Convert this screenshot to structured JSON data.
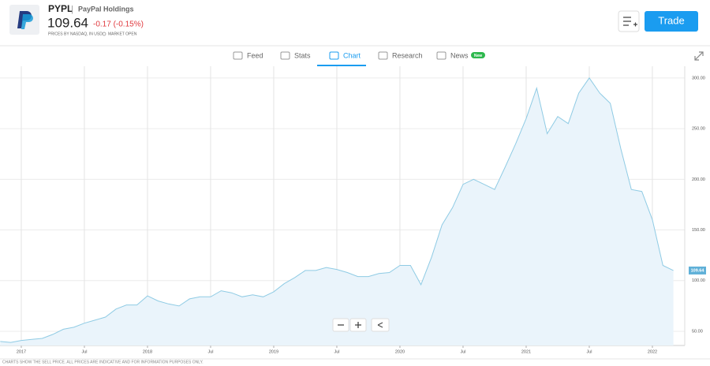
{
  "header": {
    "symbol": "PYPL",
    "separator": "|",
    "name": "PayPal Holdings",
    "price": "109.64",
    "change": "-0.17 (-0.15%)",
    "source": "PRICES BY NASDAQ, IN USD",
    "status": "MARKET OPEN",
    "trade_button": "Trade"
  },
  "tabs": [
    "Feed",
    "Stats",
    "Chart",
    "Research",
    "News"
  ],
  "news_badge": "New",
  "footer": "CHARTS SHOW THE SELL PRICE. ALL PRICES ARE INDICATIVE AND FOR INFORMATION PURPOSES ONLY.",
  "chart_data": {
    "type": "area",
    "color": "#8fcbe4",
    "price_tag": "109.64",
    "x": [
      "2016-11",
      "2016-12",
      "2017-01",
      "2017-02",
      "2017-03",
      "2017-04",
      "2017-05",
      "2017-06",
      "2017-07",
      "2017-08",
      "2017-09",
      "2017-10",
      "2017-11",
      "2017-12",
      "2018-01",
      "2018-02",
      "2018-03",
      "2018-04",
      "2018-05",
      "2018-06",
      "2018-07",
      "2018-08",
      "2018-09",
      "2018-10",
      "2018-11",
      "2018-12",
      "2019-01",
      "2019-02",
      "2019-03",
      "2019-04",
      "2019-05",
      "2019-06",
      "2019-07",
      "2019-08",
      "2019-09",
      "2019-10",
      "2019-11",
      "2019-12",
      "2020-01",
      "2020-02",
      "2020-03",
      "2020-04",
      "2020-05",
      "2020-06",
      "2020-07",
      "2020-08",
      "2020-09",
      "2020-10",
      "2020-11",
      "2020-12",
      "2021-01",
      "2021-02",
      "2021-03",
      "2021-04",
      "2021-05",
      "2021-06",
      "2021-07",
      "2021-08",
      "2021-09",
      "2021-10",
      "2021-11",
      "2021-12",
      "2022-01",
      "2022-02",
      "2022-03"
    ],
    "values": [
      40,
      39,
      41,
      42,
      43,
      47,
      52,
      54,
      58,
      61,
      64,
      72,
      76,
      76,
      85,
      80,
      77,
      75,
      82,
      84,
      84,
      90,
      88,
      84,
      86,
      84,
      89,
      97,
      103,
      110,
      110,
      113,
      111,
      108,
      104,
      104,
      107,
      108,
      115,
      115,
      96,
      123,
      155,
      172,
      195,
      200,
      195,
      190,
      212,
      235,
      260,
      290,
      245,
      262,
      255,
      285,
      300,
      285,
      275,
      230,
      190,
      188,
      160,
      115,
      110
    ],
    "xticks": [
      {
        "value": "2017-01",
        "label": "2017"
      },
      {
        "value": "2017-07",
        "label": "Jul"
      },
      {
        "value": "2018-01",
        "label": "2018"
      },
      {
        "value": "2018-07",
        "label": "Jul"
      },
      {
        "value": "2019-01",
        "label": "2019"
      },
      {
        "value": "2019-07",
        "label": "Jul"
      },
      {
        "value": "2020-01",
        "label": "2020"
      },
      {
        "value": "2020-07",
        "label": "Jul"
      },
      {
        "value": "2021-01",
        "label": "2021"
      },
      {
        "value": "2021-07",
        "label": "Jul"
      },
      {
        "value": "2022-01",
        "label": "2022"
      }
    ],
    "ylim": [
      36,
      310
    ],
    "yticks": [
      {
        "value": 50,
        "label": "50.00"
      },
      {
        "value": 100,
        "label": "100.00"
      },
      {
        "value": 150,
        "label": "150.00"
      },
      {
        "value": 200,
        "label": "200.00"
      },
      {
        "value": 250,
        "label": "250.00"
      },
      {
        "value": 300,
        "label": "300.00"
      }
    ],
    "grid": true
  }
}
